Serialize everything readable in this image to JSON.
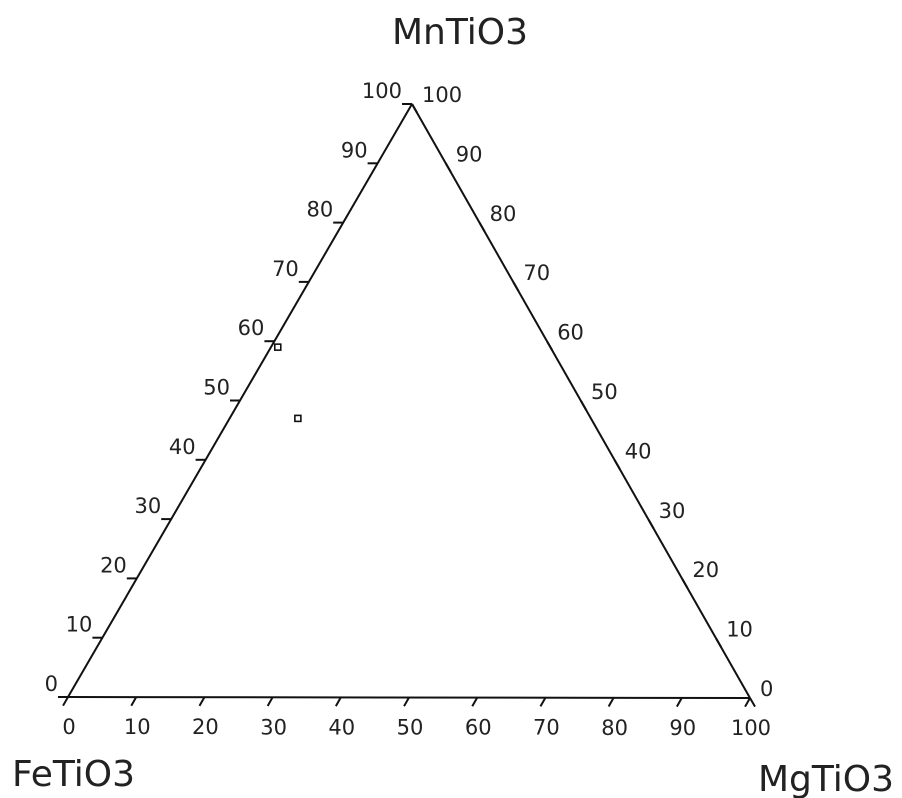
{
  "chart_data": {
    "type": "scatter",
    "subtype": "ternary",
    "title": "",
    "apex_labels": {
      "top": "MnTiO3",
      "left": "FeTiO3",
      "right": "MgTiO3"
    },
    "axes": {
      "bottom": {
        "ticks": [
          0,
          10,
          20,
          30,
          40,
          50,
          60,
          70,
          80,
          90,
          100
        ],
        "range": [
          0,
          100
        ]
      },
      "left": {
        "ticks": [
          0,
          10,
          20,
          30,
          40,
          50,
          60,
          70,
          80,
          90,
          100
        ],
        "range": [
          0,
          100
        ]
      },
      "right": {
        "ticks": [
          0,
          10,
          20,
          30,
          40,
          50,
          60,
          70,
          80,
          90,
          100
        ],
        "range": [
          0,
          100
        ]
      }
    },
    "points": [
      {
        "MgTiO3": 1,
        "MnTiO3": 59,
        "FeTiO3": 40
      },
      {
        "MgTiO3": 10,
        "MnTiO3": 47,
        "FeTiO3": 43
      }
    ],
    "grid": false,
    "legend": "none",
    "colors": {
      "line": "#111111",
      "text": "#222222"
    }
  }
}
